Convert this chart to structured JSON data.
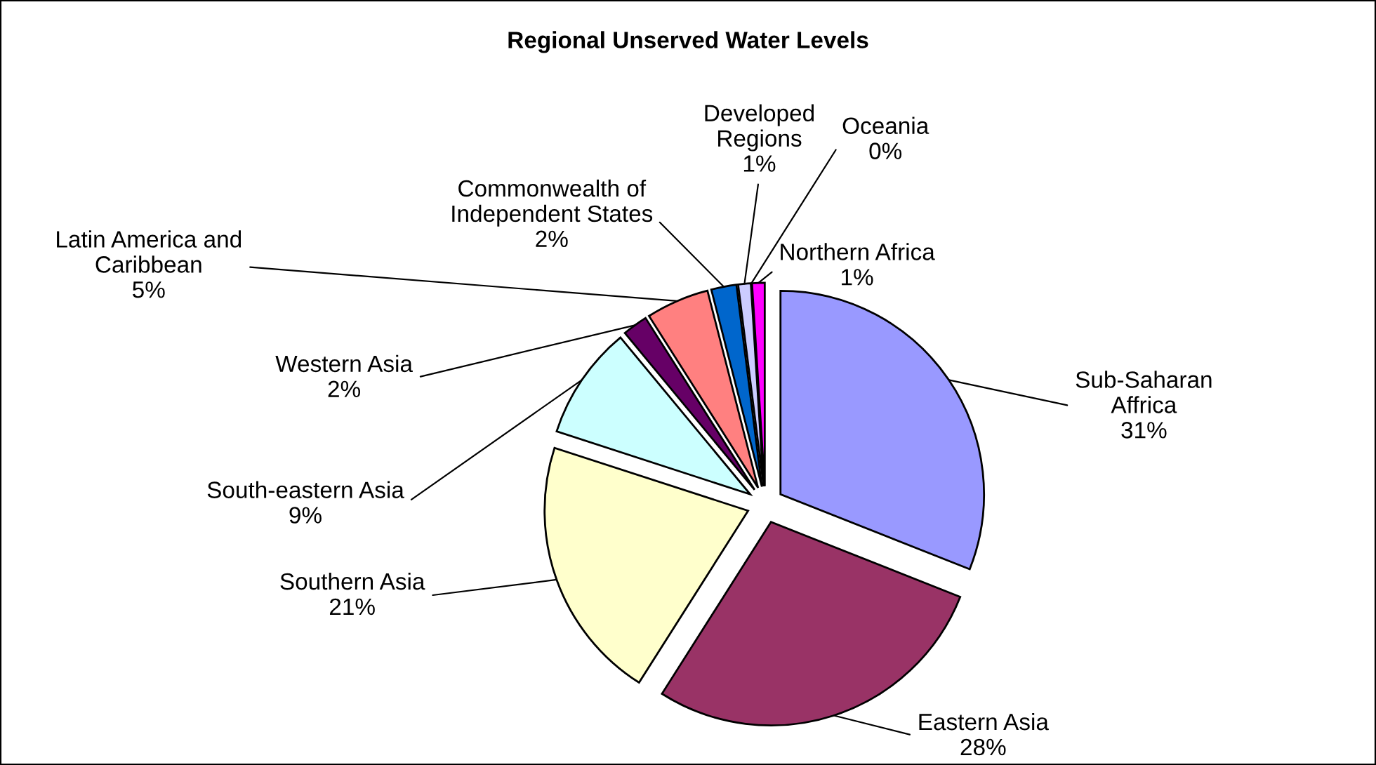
{
  "chart_data": {
    "type": "pie",
    "title": "Regional Unserved Water Levels",
    "categories": [
      "Sub-Saharan\nAffrica",
      "Eastern Asia",
      "Southern Asia",
      "South-eastern Asia",
      "Western Asia",
      "Latin America and\nCaribbean",
      "Commonwealth of\nIndependent States",
      "Developed\nRegions",
      "Oceania",
      "Northern Africa"
    ],
    "values": [
      31,
      28,
      21,
      9,
      2,
      5,
      2,
      1,
      0,
      1
    ],
    "value_labels": [
      "31%",
      "28%",
      "21%",
      "9%",
      "2%",
      "5%",
      "2%",
      "1%",
      "0%",
      "1%"
    ],
    "colors": [
      "#9999ff",
      "#993366",
      "#ffffcc",
      "#ccffff",
      "#660066",
      "#ff8080",
      "#0066cc",
      "#ccccff",
      "#000080",
      "#ff00ff"
    ],
    "legend": false
  }
}
